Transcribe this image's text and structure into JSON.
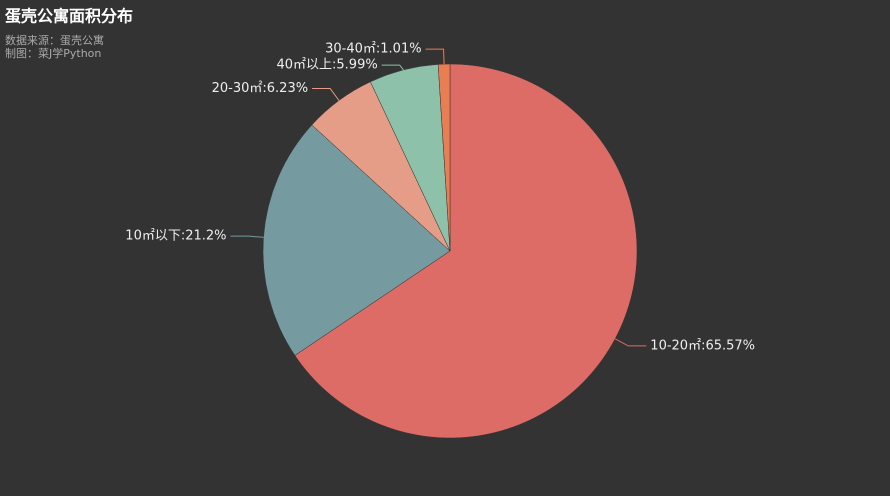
{
  "chart_data": {
    "type": "pie",
    "title": "蛋壳公寓面积分布",
    "subtitle": [
      "数据来源：蛋壳公寓",
      "制图：菜J学Python"
    ],
    "categories": [
      "10-20㎡",
      "10㎡以下",
      "20-30㎡",
      "40㎡以上",
      "30-40㎡"
    ],
    "values": [
      65.57,
      21.2,
      6.23,
      5.99,
      1.01
    ],
    "value_labels": [
      "10-20㎡:65.57%",
      "10㎡以下:21.2%",
      "20-30㎡:6.23%",
      "40㎡以上:5.99%",
      "30-40㎡:1.01%"
    ],
    "colors": [
      "#dd6b66",
      "#759aa0",
      "#e69d87",
      "#8dc1a9",
      "#ea7e53"
    ]
  }
}
